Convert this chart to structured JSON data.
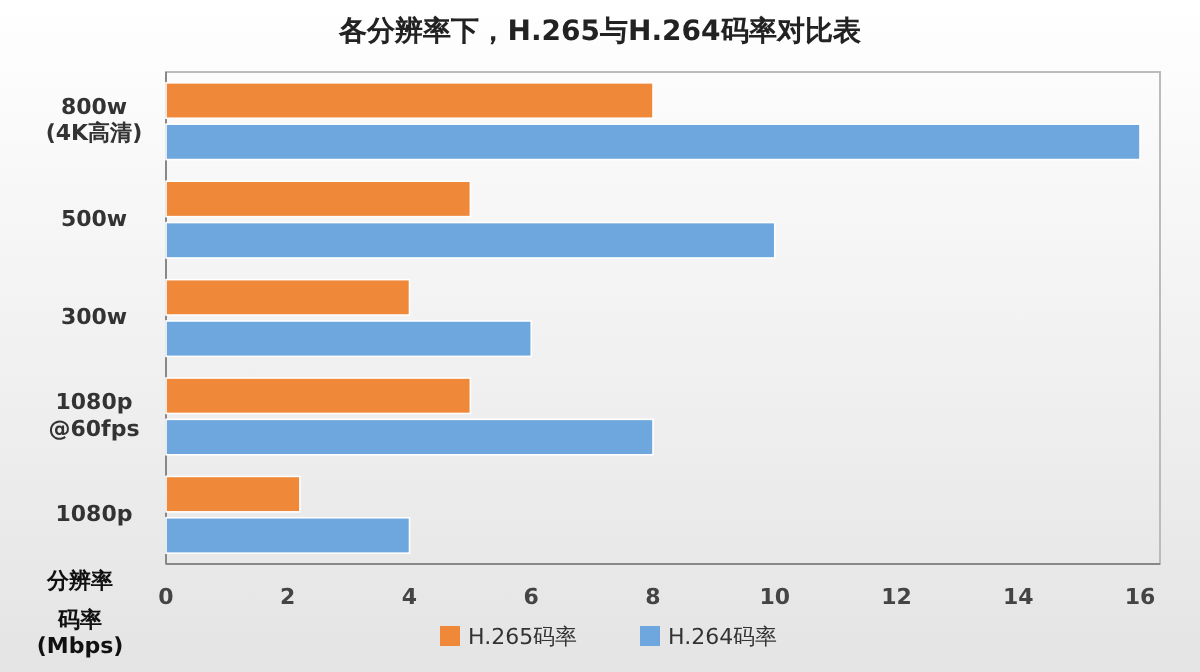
{
  "chart_data": {
    "type": "bar",
    "orientation": "horizontal",
    "title": "各分辨率下，H.265与H.264码率对比表",
    "xlabel": "码率\n(Mbps)",
    "ylabel": "分辨率",
    "categories": [
      "800w\n(4K高清)",
      "500w",
      "300w",
      "1080p\n@60fps",
      "1080p"
    ],
    "series": [
      {
        "name": "H.265码率",
        "color": "#f0883a",
        "values": [
          8,
          5,
          4,
          5,
          2.2
        ]
      },
      {
        "name": "H.264码率",
        "color": "#6ea6de",
        "values": [
          16,
          10,
          6,
          8,
          4
        ]
      }
    ],
    "xlim": [
      0,
      16
    ],
    "xticks": [
      0,
      2,
      4,
      6,
      8,
      10,
      12,
      14,
      16
    ],
    "grid": false,
    "legend": "bottom"
  }
}
